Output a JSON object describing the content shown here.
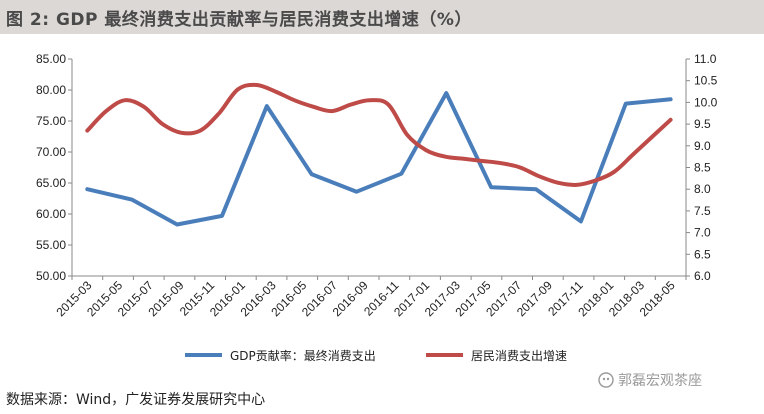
{
  "title": "图 2:  GDP 最终消费支出贡献率与居民消费支出增速（%）",
  "source": "数据来源：Wind，广发证券发展研究中心",
  "watermark": "郭磊宏观茶座",
  "colors": {
    "series_blue": "#4a7ebb",
    "series_red": "#be4b48",
    "axis": "#888888",
    "title_bg": "#dcd8d6"
  },
  "chart_data": {
    "type": "line",
    "categories": [
      "2015-03",
      "2015-05",
      "2015-07",
      "2015-09",
      "2015-11",
      "2016-01",
      "2016-03",
      "2016-05",
      "2016-07",
      "2016-09",
      "2016-11",
      "2017-01",
      "2017-03",
      "2017-05",
      "2017-07",
      "2017-09",
      "2017-11",
      "2018-01",
      "2018-03",
      "2018-05"
    ],
    "x_axis_labels": [
      "2015-03",
      "2015-05",
      "2015-07",
      "2015-09",
      "2015-11",
      "2016-01",
      "2016-03",
      "2016-05",
      "2016-07",
      "2016-09",
      "2016-11",
      "2017-01",
      "2017-03",
      "2017-05",
      "2017-07",
      "2017-09",
      "2017-11",
      "2018-01",
      "2018-03",
      "2018-05"
    ],
    "y_left": {
      "min": 50,
      "max": 85,
      "step": 5,
      "labels": [
        "85.00",
        "80.00",
        "75.00",
        "70.00",
        "65.00",
        "60.00",
        "55.00",
        "50.00"
      ]
    },
    "y_right": {
      "min": 6.0,
      "max": 11.0,
      "step": 0.5,
      "labels": [
        "11.0",
        "10.5",
        "10.0",
        "9.5",
        "9.0",
        "8.5",
        "8.0",
        "7.5",
        "7.0",
        "6.5",
        "6.0"
      ]
    },
    "series": [
      {
        "name": "GDP贡献率：最终消费支出",
        "axis": "left",
        "color": "#4a7ebb",
        "points": [
          [
            0,
            64.0
          ],
          [
            1,
            62.3
          ],
          [
            2,
            58.3
          ],
          [
            3,
            59.7
          ],
          [
            4,
            77.4
          ],
          [
            5,
            66.4
          ],
          [
            6,
            63.6
          ],
          [
            7,
            66.5
          ],
          [
            8,
            79.5
          ],
          [
            9,
            64.3
          ],
          [
            10,
            64.0
          ],
          [
            11,
            58.8
          ],
          [
            12,
            77.8
          ],
          [
            13,
            78.5
          ]
        ]
      },
      {
        "name": "居民消费支出增速",
        "axis": "right",
        "color": "#be4b48",
        "points": [
          [
            0,
            9.35
          ],
          [
            1,
            9.8
          ],
          [
            2,
            10.05
          ],
          [
            3,
            9.9
          ],
          [
            4,
            9.5
          ],
          [
            5,
            9.3
          ],
          [
            6,
            9.35
          ],
          [
            7,
            9.75
          ],
          [
            8,
            10.3
          ],
          [
            9,
            10.4
          ],
          [
            10,
            10.25
          ],
          [
            11,
            10.05
          ],
          [
            12,
            9.9
          ],
          [
            13,
            9.8
          ],
          [
            14,
            9.95
          ],
          [
            15,
            10.05
          ],
          [
            16,
            9.95
          ],
          [
            17,
            9.25
          ],
          [
            18,
            8.9
          ],
          [
            19,
            8.75
          ],
          [
            20,
            8.7
          ],
          [
            21,
            8.65
          ],
          [
            22,
            8.6
          ],
          [
            23,
            8.5
          ],
          [
            24,
            8.3
          ],
          [
            25,
            8.15
          ],
          [
            26,
            8.1
          ],
          [
            27,
            8.2
          ],
          [
            28,
            8.4
          ],
          [
            29,
            8.8
          ],
          [
            30,
            9.2
          ],
          [
            31,
            9.6
          ]
        ]
      }
    ]
  }
}
